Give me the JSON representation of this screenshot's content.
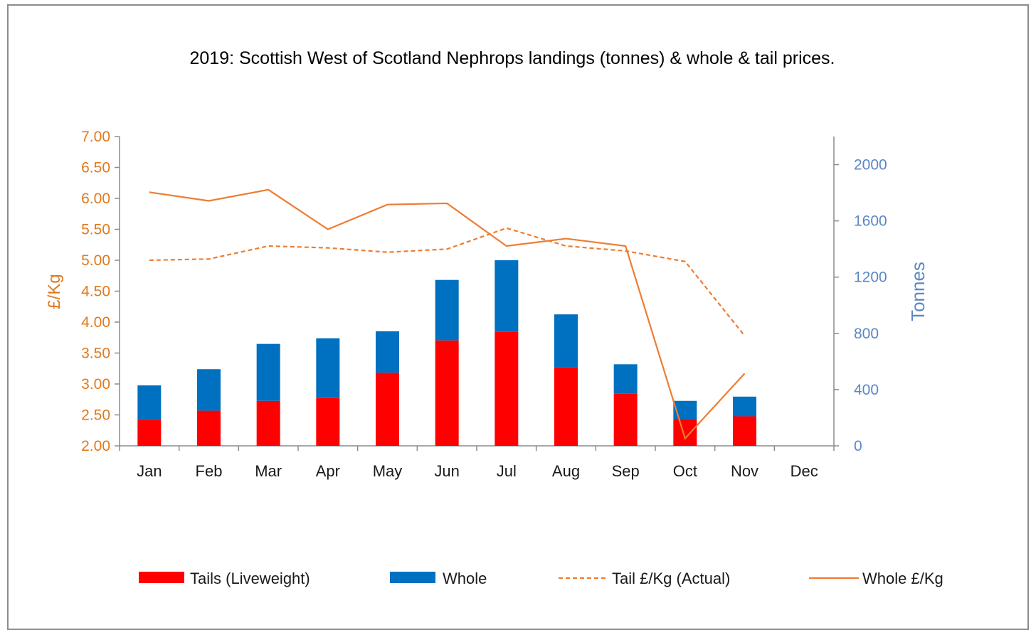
{
  "chart_data": {
    "type": "bar",
    "title": "2019: Scottish West of Scotland Nephrops landings (tonnes) & whole & tail prices.",
    "categories": [
      "Jan",
      "Feb",
      "Mar",
      "Apr",
      "May",
      "Jun",
      "Jul",
      "Aug",
      "Sep",
      "Oct",
      "Nov",
      "Dec"
    ],
    "y_left": {
      "label": "£/Kg",
      "range": [
        2.0,
        7.0
      ],
      "ticks": [
        "2.00",
        "2.50",
        "3.00",
        "3.50",
        "4.00",
        "4.50",
        "5.00",
        "5.50",
        "6.00",
        "6.50",
        "7.00"
      ]
    },
    "y_right": {
      "label": "Tonnes",
      "range": [
        0,
        2200
      ],
      "ticks": [
        "0",
        "400",
        "800",
        "1200",
        "1600",
        "2000"
      ]
    },
    "series": [
      {
        "name": "Tails (Liveweight)",
        "type": "bar",
        "axis": "right",
        "stacked": true,
        "color": "#ff0000",
        "values": [
          185,
          250,
          320,
          340,
          520,
          750,
          810,
          560,
          370,
          190,
          210,
          null
        ]
      },
      {
        "name": "Whole",
        "type": "bar",
        "axis": "right",
        "stacked": true,
        "color": "#0070c0",
        "values": [
          245,
          295,
          405,
          425,
          295,
          430,
          510,
          375,
          210,
          130,
          140,
          null
        ]
      },
      {
        "name": "Tail £/Kg (Actual)",
        "type": "line",
        "axis": "left",
        "dashed": true,
        "color": "#ed7d31",
        "values": [
          5.0,
          5.02,
          5.23,
          5.2,
          5.13,
          5.18,
          5.52,
          5.23,
          5.15,
          4.98,
          3.78,
          null
        ]
      },
      {
        "name": "Whole £/Kg",
        "type": "line",
        "axis": "left",
        "dashed": false,
        "color": "#ed7d31",
        "values": [
          6.1,
          5.96,
          6.14,
          5.5,
          5.9,
          5.92,
          5.23,
          5.35,
          5.23,
          2.12,
          3.17,
          null
        ]
      }
    ],
    "legend_position": "bottom",
    "grid": false
  }
}
